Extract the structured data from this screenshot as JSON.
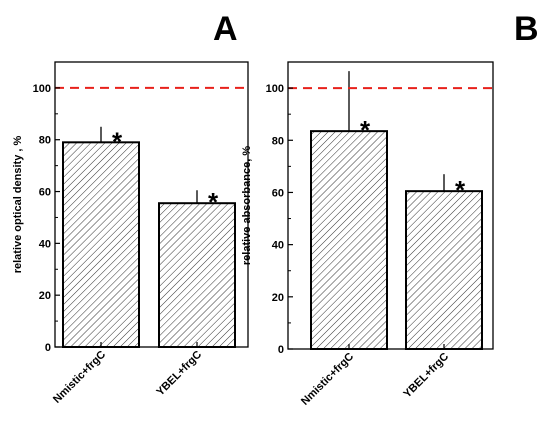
{
  "figure": {
    "panels": [
      {
        "letter": "A",
        "chart_data": {
          "type": "bar",
          "categories": [
            "Nmistic+frgC",
            "YBEL+frgC"
          ],
          "values": [
            79,
            55.5
          ],
          "errors": [
            6,
            5
          ],
          "significance": [
            "*",
            "*"
          ],
          "reference_line": {
            "value": 100,
            "color": "#e8211b",
            "style": "dashed"
          },
          "title": "",
          "xlabel": "",
          "ylabel": "relative optical density , %",
          "ylim": [
            0,
            110
          ],
          "yticks": [
            0,
            20,
            40,
            60,
            80,
            100
          ],
          "grid": false,
          "bar_fill": "hatched",
          "bar_color": "#000000"
        }
      },
      {
        "letter": "B",
        "chart_data": {
          "type": "bar",
          "categories": [
            "Nmistic+frgC",
            "YBEL+frgC"
          ],
          "values": [
            83.5,
            60.5
          ],
          "errors": [
            23,
            6.5
          ],
          "significance": [
            "*",
            "*"
          ],
          "reference_line": {
            "value": 100,
            "color": "#e8211b",
            "style": "dashed"
          },
          "title": "",
          "xlabel": "",
          "ylabel": "relative absorbance, %",
          "ylim": [
            0,
            110
          ],
          "yticks": [
            0,
            20,
            40,
            60,
            80,
            100
          ],
          "grid": false,
          "bar_fill": "hatched",
          "bar_color": "#000000"
        }
      }
    ]
  }
}
